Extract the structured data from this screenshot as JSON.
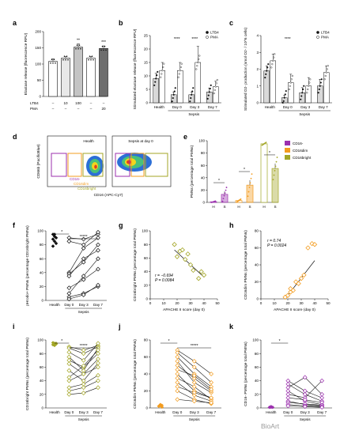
{
  "panels": {
    "a": {
      "label": "a"
    },
    "b": {
      "label": "b"
    },
    "c": {
      "label": "c"
    },
    "d": {
      "label": "d"
    },
    "e": {
      "label": "e"
    },
    "f": {
      "label": "f"
    },
    "g": {
      "label": "g"
    },
    "h": {
      "label": "h"
    },
    "i": {
      "label": "i"
    },
    "j": {
      "label": "j"
    },
    "k": {
      "label": "k"
    }
  },
  "colors": {
    "gray_light": "#e8e8e8",
    "gray_mid": "#bdbdbd",
    "gray_dark": "#6e6e6e",
    "purple": "#9b2fae",
    "orange": "#f39c1f",
    "olive": "#a3a626",
    "olive_dark": "#7e8a10"
  },
  "chart_data": [
    {
      "id": "a",
      "type": "bar",
      "ylabel": "Elastase release (fluorescence RFU)",
      "ylim": [
        0,
        200
      ],
      "yticks": [
        0,
        50,
        100,
        150,
        200
      ],
      "row_labels": [
        "LTB4",
        "PMA"
      ],
      "conditions": [
        {
          "ltb4": "–",
          "pma": "–",
          "value": 108,
          "err": 8,
          "sig": "",
          "fill": "#ffffff"
        },
        {
          "ltb4": "10",
          "pma": "–",
          "value": 118,
          "err": 5,
          "sig": "",
          "fill": "#e8e8e8"
        },
        {
          "ltb4": "100",
          "pma": "–",
          "value": 152,
          "err": 10,
          "sig": "**",
          "fill": "#c4c4c4"
        },
        {
          "ltb4": "–",
          "pma": "–",
          "value": 118,
          "err": 5,
          "sig": "",
          "fill": "#ffffff"
        },
        {
          "ltb4": "–",
          "pma": "20",
          "value": 148,
          "err": 8,
          "sig": "***",
          "fill": "#6e6e6e"
        }
      ]
    },
    {
      "id": "b",
      "type": "bar",
      "ylabel": "Stimulated elastase release (fluorescence RFU)",
      "ylim": [
        0,
        25
      ],
      "yticks": [
        0,
        5,
        10,
        15,
        20,
        25
      ],
      "categories": [
        "Health",
        "Day 0",
        "Day 3",
        "Day 7"
      ],
      "group_label": "Sepsis",
      "series": [
        {
          "name": "LTB4",
          "values": [
            9,
            3,
            3,
            4
          ],
          "err": [
            2,
            1,
            1,
            1.5
          ]
        },
        {
          "name": "PMA",
          "values": [
            12,
            12,
            15,
            6
          ],
          "err": [
            3,
            3,
            6,
            2
          ]
        }
      ],
      "annotations": [
        "****",
        "****"
      ]
    },
    {
      "id": "c",
      "type": "bar",
      "ylabel": "Stimulated O2- production (nmol O2- / 10^6 cells)",
      "ylim": [
        0,
        4
      ],
      "yticks": [
        0,
        1,
        2,
        3,
        4
      ],
      "categories": [
        "Health",
        "Day 0",
        "Day 3",
        "Day 7"
      ],
      "group_label": "Sepsis",
      "series": [
        {
          "name": "LTB4",
          "values": [
            1.9,
            0.3,
            0.6,
            1.0
          ],
          "err": [
            0.3,
            0.15,
            0.3,
            0.4
          ]
        },
        {
          "name": "PMA",
          "values": [
            2.5,
            1.2,
            1.0,
            1.8
          ],
          "err": [
            0.4,
            0.5,
            0.5,
            0.4
          ]
        }
      ],
      "annotations": [
        "****"
      ]
    },
    {
      "id": "d",
      "type": "scatter",
      "xlabel": "CD16 (APC-Cy7)",
      "ylabel": "CD66b (PacificBlue)",
      "plots": [
        "Health",
        "Sepsis at day 0"
      ],
      "gates": [
        {
          "name": "CD16-",
          "color": "#9b2fae"
        },
        {
          "name": "CD16dim",
          "color": "#f39c1f"
        },
        {
          "name": "CD16bright",
          "color": "#a3a626"
        }
      ]
    },
    {
      "id": "e",
      "type": "bar",
      "ylabel": "PMNs (percentage total PMNs)",
      "ylim": [
        0,
        100
      ],
      "yticks": [
        0,
        20,
        40,
        60,
        80,
        100
      ],
      "categories": [
        "H",
        "S",
        "H",
        "S",
        "H",
        "S"
      ],
      "legend": [
        "CD16-",
        "CD16dim",
        "CD16bright"
      ],
      "values": [
        1,
        13,
        3,
        28,
        95,
        55
      ],
      "err": [
        0.5,
        5,
        1,
        8,
        1,
        8
      ],
      "annotations": [
        "*",
        "*",
        "*"
      ]
    },
    {
      "id": "f",
      "type": "line",
      "ylabel": "pHrodo+ PMNs (percentage CD16bright PMNs)",
      "ylim": [
        0,
        100
      ],
      "yticks": [
        0,
        20,
        40,
        60,
        80,
        100
      ],
      "categories": [
        "Health",
        "Day 0",
        "Day 3",
        "Day 7"
      ],
      "group_label": "Sepsis",
      "health": [
        95,
        92,
        90,
        88,
        85,
        82,
        78,
        95
      ],
      "paired": [
        [
          90,
          88,
          95
        ],
        [
          85,
          80,
          98
        ],
        [
          40,
          75,
          90
        ],
        [
          38,
          55,
          80
        ],
        [
          35,
          60,
          72
        ],
        [
          18,
          30,
          45
        ],
        [
          10,
          35,
          60
        ],
        [
          5,
          10,
          20
        ],
        [
          2,
          8,
          22
        ]
      ],
      "annotations": [
        "*",
        "*****"
      ]
    },
    {
      "id": "g",
      "type": "scatter",
      "xlabel": "APACHE II score (day 0)",
      "ylabel": "CD16bright PMNs (percentage total PMNs)",
      "xlim": [
        0,
        50
      ],
      "xticks": [
        0,
        10,
        20,
        30,
        40,
        50
      ],
      "ylim": [
        0,
        100
      ],
      "yticks": [
        0,
        20,
        40,
        60,
        80,
        100
      ],
      "points": [
        [
          18,
          80
        ],
        [
          22,
          70
        ],
        [
          20,
          62
        ],
        [
          24,
          72
        ],
        [
          26,
          58
        ],
        [
          28,
          66
        ],
        [
          30,
          50
        ],
        [
          32,
          42
        ],
        [
          36,
          30
        ],
        [
          38,
          40
        ],
        [
          40,
          35
        ]
      ],
      "fit": [
        [
          18,
          72
        ],
        [
          40,
          32
        ]
      ],
      "stats": [
        "r = −0.694",
        "P = 0.0084"
      ]
    },
    {
      "id": "h",
      "type": "scatter",
      "xlabel": "APACHE II score (day 0)",
      "ylabel": "CD16dim PMNs (percentage total PMNs)",
      "xlim": [
        0,
        50
      ],
      "xticks": [
        0,
        10,
        20,
        30,
        40,
        50
      ],
      "ylim": [
        0,
        80
      ],
      "yticks": [
        0,
        20,
        40,
        60,
        80
      ],
      "points": [
        [
          18,
          2
        ],
        [
          20,
          4
        ],
        [
          22,
          8
        ],
        [
          22,
          12
        ],
        [
          24,
          10
        ],
        [
          26,
          20
        ],
        [
          28,
          18
        ],
        [
          30,
          24
        ],
        [
          32,
          28
        ],
        [
          35,
          60
        ],
        [
          38,
          65
        ],
        [
          40,
          64
        ]
      ],
      "fit": [
        [
          18,
          0
        ],
        [
          40,
          45
        ]
      ],
      "stats": [
        "r = 0.74",
        "P = 0.0024"
      ]
    },
    {
      "id": "i",
      "type": "line",
      "ylabel": "CD16bright PMNs (percentage total PMNs)",
      "ylim": [
        0,
        100
      ],
      "yticks": [
        0,
        20,
        40,
        60,
        80,
        100
      ],
      "categories": [
        "Health",
        "Day 0",
        "Day 3",
        "Day 7"
      ],
      "group_label": "Sepsis",
      "health": [
        96,
        95,
        94,
        93,
        92,
        95
      ],
      "paired": [
        [
          90,
          85,
          92
        ],
        [
          88,
          80,
          90
        ],
        [
          82,
          70,
          95
        ],
        [
          75,
          55,
          88
        ],
        [
          70,
          60,
          80
        ],
        [
          65,
          50,
          72
        ],
        [
          55,
          40,
          66
        ],
        [
          45,
          62,
          85
        ],
        [
          40,
          50,
          60
        ],
        [
          30,
          35,
          48
        ],
        [
          25,
          30,
          40
        ],
        [
          20,
          22,
          30
        ]
      ],
      "annotations": [
        "*",
        "*****"
      ]
    },
    {
      "id": "j",
      "type": "line",
      "ylabel": "CD16dim PMNs (percentage total PMNs)",
      "ylim": [
        0,
        80
      ],
      "yticks": [
        0,
        20,
        40,
        60,
        80
      ],
      "categories": [
        "Health",
        "Day 0",
        "Day 3",
        "Day 7"
      ],
      "group_label": "Sepsis",
      "health": [
        2,
        3,
        1,
        2,
        4,
        3
      ],
      "paired": [
        [
          68,
          55,
          40
        ],
        [
          65,
          48,
          30
        ],
        [
          60,
          40,
          25
        ],
        [
          55,
          30,
          18
        ],
        [
          50,
          35,
          20
        ],
        [
          45,
          38,
          22
        ],
        [
          40,
          20,
          12
        ],
        [
          35,
          25,
          10
        ],
        [
          30,
          15,
          8
        ],
        [
          25,
          18,
          12
        ],
        [
          20,
          10,
          5
        ],
        [
          10,
          8,
          6
        ]
      ],
      "annotations": [
        "*",
        "*****"
      ]
    },
    {
      "id": "k",
      "type": "line",
      "ylabel": "CD16- PMNs (percentage total PMNs)",
      "ylim": [
        0,
        100
      ],
      "yticks": [
        0,
        20,
        40,
        60,
        80,
        100
      ],
      "categories": [
        "Health",
        "Day 0",
        "Day 3",
        "Day 7"
      ],
      "group_label": "Sepsis",
      "health": [
        1,
        1,
        1,
        1,
        2
      ],
      "paired": [
        [
          40,
          25,
          15
        ],
        [
          35,
          20,
          10
        ],
        [
          30,
          45,
          20
        ],
        [
          25,
          10,
          5
        ],
        [
          20,
          15,
          40
        ],
        [
          15,
          12,
          8
        ],
        [
          10,
          5,
          3
        ],
        [
          8,
          6,
          4
        ],
        [
          5,
          3,
          2
        ],
        [
          3,
          2,
          1
        ]
      ],
      "annotations": [
        "*"
      ]
    }
  ],
  "watermark": "BioArt"
}
